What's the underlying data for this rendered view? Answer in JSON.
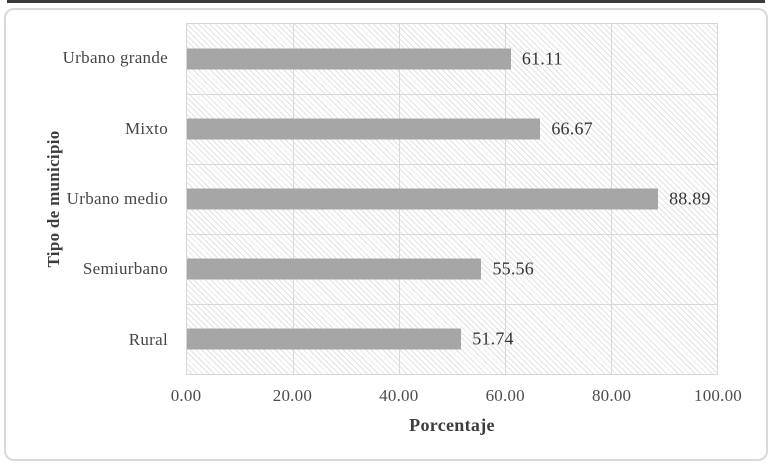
{
  "chart_data": {
    "type": "bar",
    "orientation": "horizontal",
    "title": "",
    "categories": [
      "Urbano grande",
      "Mixto",
      "Urbano medio",
      "Semiurbano",
      "Rural"
    ],
    "values": [
      61.11,
      66.67,
      88.89,
      55.56,
      51.74
    ],
    "value_labels": [
      "61.11",
      "66.67",
      "88.89",
      "55.56",
      "51.74"
    ],
    "xlabel": "Porcentaje",
    "ylabel": "Tipo de municipio",
    "xlim": [
      0,
      100
    ],
    "xticks": [
      0,
      20,
      40,
      60,
      80,
      100
    ],
    "xtick_labels": [
      "0.00",
      "20.00",
      "40.00",
      "60.00",
      "80.00",
      "100.00"
    ],
    "grid": "vertical-gridlines-and-category-band-separators",
    "legend": "none",
    "plot_background": "light-downward-diagonal-hatch"
  },
  "colors": {
    "bar_fill": "#a6a6a6",
    "gridline": "#d9d9d9",
    "hatch_line": "#e2e2e2",
    "frame_border": "#d9d9d9",
    "top_rule": "#3a3a3a",
    "category_text": "#464646",
    "value_text": "#343434",
    "tick_text": "#4d4d4d",
    "axis_title_text": "#3d3d3d"
  }
}
